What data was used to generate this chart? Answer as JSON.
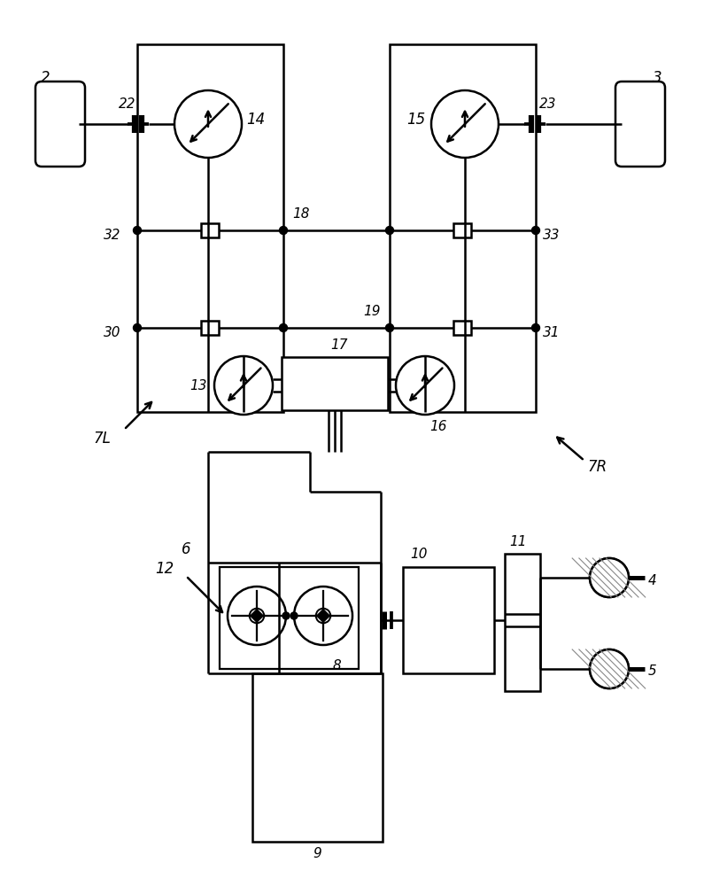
{
  "bg_color": "#ffffff",
  "line_color": "#000000",
  "line_width": 1.8,
  "fig_width": 7.95,
  "fig_height": 10.0
}
